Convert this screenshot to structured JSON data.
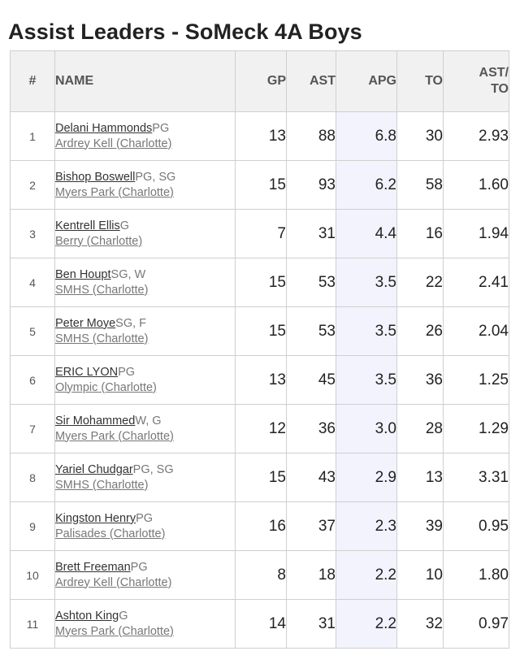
{
  "page": {
    "title": "Assist Leaders - SoMeck 4A Boys"
  },
  "table": {
    "headers": {
      "rank": "#",
      "name": "NAME",
      "gp": "GP",
      "ast": "AST",
      "apg": "APG",
      "to": "TO",
      "ratio_line1": "AST/",
      "ratio_line2": "TO"
    },
    "rows": [
      {
        "rank": "1",
        "player": "Delani Hammonds",
        "pos": "PG",
        "school": "Ardrey Kell (Charlotte)",
        "gp": "13",
        "ast": "88",
        "apg": "6.8",
        "to": "30",
        "ratio": "2.93"
      },
      {
        "rank": "2",
        "player": "Bishop Boswell",
        "pos": "PG, SG",
        "school": "Myers Park (Charlotte)",
        "gp": "15",
        "ast": "93",
        "apg": "6.2",
        "to": "58",
        "ratio": "1.60"
      },
      {
        "rank": "3",
        "player": "Kentrell Ellis",
        "pos": "G",
        "school": "Berry (Charlotte)",
        "gp": "7",
        "ast": "31",
        "apg": "4.4",
        "to": "16",
        "ratio": "1.94"
      },
      {
        "rank": "4",
        "player": "Ben Houpt",
        "pos": "SG, W",
        "school": "SMHS (Charlotte)",
        "gp": "15",
        "ast": "53",
        "apg": "3.5",
        "to": "22",
        "ratio": "2.41"
      },
      {
        "rank": "5",
        "player": "Peter Moye",
        "pos": "SG, F",
        "school": "SMHS (Charlotte)",
        "gp": "15",
        "ast": "53",
        "apg": "3.5",
        "to": "26",
        "ratio": "2.04"
      },
      {
        "rank": "6",
        "player": "ERIC LYON",
        "pos": "PG",
        "school": "Olympic (Charlotte)",
        "gp": "13",
        "ast": "45",
        "apg": "3.5",
        "to": "36",
        "ratio": "1.25"
      },
      {
        "rank": "7",
        "player": "Sir Mohammed",
        "pos": "W, G",
        "school": "Myers Park (Charlotte)",
        "gp": "12",
        "ast": "36",
        "apg": "3.0",
        "to": "28",
        "ratio": "1.29"
      },
      {
        "rank": "8",
        "player": "Yariel Chudgar",
        "pos": "PG, SG",
        "school": "SMHS (Charlotte)",
        "gp": "15",
        "ast": "43",
        "apg": "2.9",
        "to": "13",
        "ratio": "3.31"
      },
      {
        "rank": "9",
        "player": "Kingston Henry",
        "pos": "PG",
        "school": "Palisades (Charlotte)",
        "gp": "16",
        "ast": "37",
        "apg": "2.3",
        "to": "39",
        "ratio": "0.95"
      },
      {
        "rank": "10",
        "player": "Brett Freeman",
        "pos": "PG",
        "school": "Ardrey Kell (Charlotte)",
        "gp": "8",
        "ast": "18",
        "apg": "2.2",
        "to": "10",
        "ratio": "1.80"
      },
      {
        "rank": "11",
        "player": "Ashton King",
        "pos": "G",
        "school": "Myers Park (Charlotte)",
        "gp": "14",
        "ast": "31",
        "apg": "2.2",
        "to": "32",
        "ratio": "0.97"
      }
    ]
  }
}
